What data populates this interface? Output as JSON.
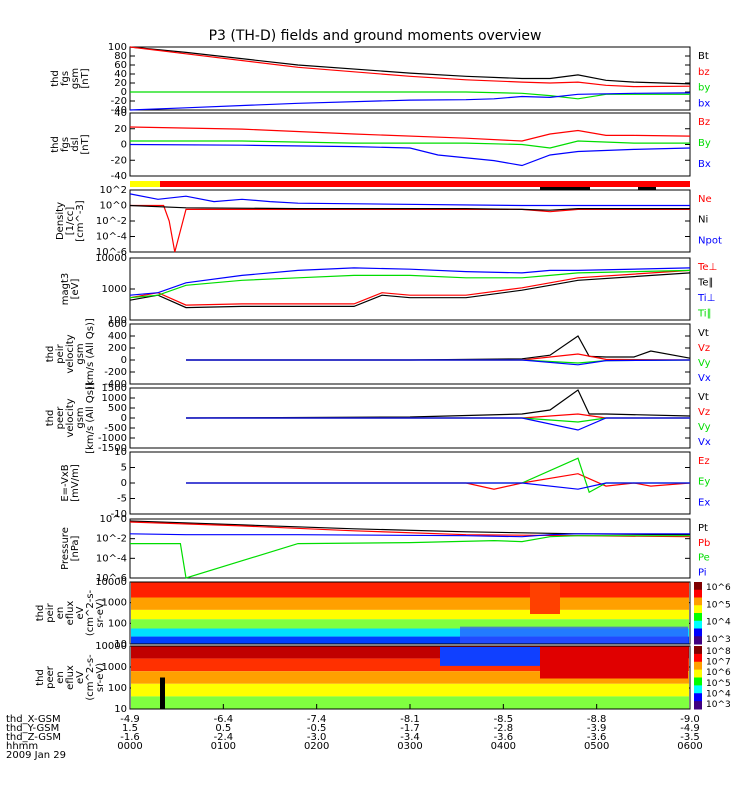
{
  "title": "P3 (TH-D) fields and ground moments overview",
  "colors": {
    "black": "#000000",
    "red": "#ff0000",
    "green": "#00dd00",
    "blue": "#0000ff"
  },
  "chart_data": [
    {
      "id": "p1",
      "type": "line",
      "ylabel": [
        "thd",
        "fgs",
        "gsm",
        "[nT]"
      ],
      "ylim": [
        -40,
        100
      ],
      "yticks": [
        "100",
        "80",
        "60",
        "40",
        "20",
        "0",
        "-20",
        "-40"
      ],
      "legend": [
        "Bt",
        "bz",
        "by",
        "bx"
      ],
      "series": [
        {
          "name": "Bt",
          "color": "black",
          "x": [
            0,
            0.1,
            0.3,
            0.5,
            0.6,
            0.7,
            0.75,
            0.8,
            0.85,
            0.9,
            1
          ],
          "y": [
            100,
            88,
            60,
            42,
            35,
            30,
            30,
            38,
            26,
            22,
            18
          ]
        },
        {
          "name": "bz",
          "color": "red",
          "x": [
            0,
            0.1,
            0.3,
            0.5,
            0.6,
            0.7,
            0.75,
            0.8,
            0.85,
            0.9,
            1
          ],
          "y": [
            100,
            85,
            55,
            35,
            27,
            22,
            20,
            22,
            15,
            12,
            13
          ]
        },
        {
          "name": "by",
          "color": "green",
          "x": [
            0,
            0.3,
            0.6,
            0.7,
            0.75,
            0.8,
            0.85,
            0.9,
            1
          ],
          "y": [
            0,
            0,
            0,
            -3,
            -8,
            -15,
            -5,
            -5,
            -5
          ]
        },
        {
          "name": "bx",
          "color": "blue",
          "x": [
            0,
            0.1,
            0.3,
            0.5,
            0.6,
            0.65,
            0.7,
            0.75,
            0.8,
            0.9,
            1
          ],
          "y": [
            -40,
            -35,
            -25,
            -18,
            -17,
            -15,
            -10,
            -12,
            -5,
            -3,
            -2
          ]
        }
      ]
    },
    {
      "id": "p2",
      "type": "line",
      "ylabel": [
        "thd",
        "fgs",
        "dsl",
        "[nT]"
      ],
      "ylim": [
        -50,
        40
      ],
      "yticks": [
        "40",
        "20",
        "0",
        "-20",
        "-40"
      ],
      "legend": [
        "Bz",
        "By",
        "Bx"
      ],
      "series": [
        {
          "name": "Bz",
          "color": "red",
          "x": [
            0,
            0.2,
            0.4,
            0.6,
            0.7,
            0.75,
            0.8,
            0.85,
            0.9,
            1
          ],
          "y": [
            20,
            17,
            10,
            4,
            0,
            10,
            15,
            8,
            8,
            7
          ]
        },
        {
          "name": "By",
          "color": "green",
          "x": [
            0,
            0.2,
            0.4,
            0.6,
            0.7,
            0.75,
            0.8,
            0.9,
            1
          ],
          "y": [
            0,
            0,
            -3,
            -3,
            -5,
            -10,
            0,
            -3,
            -3
          ]
        },
        {
          "name": "Bx",
          "color": "blue",
          "x": [
            0,
            0.2,
            0.4,
            0.5,
            0.55,
            0.65,
            0.7,
            0.75,
            0.8,
            0.9,
            1
          ],
          "y": [
            -5,
            -6,
            -8,
            -10,
            -20,
            -28,
            -35,
            -20,
            -15,
            -12,
            -10
          ]
        }
      ]
    },
    {
      "id": "p3",
      "type": "line",
      "ylabel": [
        "Density",
        "[1/cc]",
        "[cm^-3]"
      ],
      "ylim": [
        -6,
        2
      ],
      "yticks": [
        "10^2",
        "10^0",
        "10^-2",
        "10^-4",
        "10^-6"
      ],
      "legend": [
        "Ne",
        "Ni",
        "Npot"
      ],
      "series": [
        {
          "name": "Ne",
          "color": "red",
          "x": [
            0,
            0.06,
            0.07,
            0.08,
            0.1,
            0.3,
            0.6,
            0.7,
            0.75,
            0.8,
            1
          ],
          "y": [
            0,
            0,
            -2,
            -6,
            -0.5,
            -0.5,
            -0.5,
            -0.5,
            -0.8,
            -0.5,
            -0.5
          ]
        },
        {
          "name": "Ni",
          "color": "black",
          "x": [
            0,
            0.1,
            0.3,
            0.6,
            0.7,
            0.75,
            0.8,
            1
          ],
          "y": [
            0,
            -0.3,
            -0.4,
            -0.4,
            -0.5,
            -0.6,
            -0.4,
            -0.4
          ]
        },
        {
          "name": "Npot",
          "color": "blue",
          "x": [
            0,
            0.05,
            0.1,
            0.15,
            0.2,
            0.25,
            0.3,
            0.7,
            1
          ],
          "y": [
            1.5,
            0.8,
            1.2,
            0.5,
            0.8,
            0.5,
            0.3,
            0,
            0
          ]
        }
      ]
    },
    {
      "id": "p4",
      "type": "line",
      "ylabel": [
        "magt3",
        "[eV]"
      ],
      "ylim": [
        1.5,
        4
      ],
      "yticks": [
        "10000",
        "1000",
        "100"
      ],
      "legend": [
        "Te⊥",
        "Te∥",
        "Ti⊥",
        "Ti∥"
      ],
      "series": [
        {
          "name": "Te⊥",
          "color": "red",
          "x": [
            0,
            0.05,
            0.1,
            0.2,
            0.4,
            0.45,
            0.5,
            0.6,
            0.7,
            0.75,
            0.8,
            1
          ],
          "y": [
            2.4,
            2.6,
            2.1,
            2.15,
            2.15,
            2.6,
            2.5,
            2.5,
            2.8,
            3,
            3.2,
            3.5
          ]
        },
        {
          "name": "Te∥",
          "color": "black",
          "x": [
            0,
            0.05,
            0.1,
            0.2,
            0.4,
            0.45,
            0.5,
            0.6,
            0.7,
            0.75,
            0.8,
            1
          ],
          "y": [
            2.3,
            2.5,
            2,
            2.05,
            2.05,
            2.5,
            2.4,
            2.4,
            2.7,
            2.9,
            3.1,
            3.4
          ]
        },
        {
          "name": "Ti⊥",
          "color": "blue",
          "x": [
            0,
            0.05,
            0.1,
            0.2,
            0.3,
            0.4,
            0.5,
            0.6,
            0.7,
            0.75,
            0.8,
            1
          ],
          "y": [
            2.5,
            2.6,
            3,
            3.3,
            3.5,
            3.6,
            3.55,
            3.45,
            3.4,
            3.5,
            3.5,
            3.6
          ]
        },
        {
          "name": "Ti∥",
          "color": "green",
          "x": [
            0,
            0.05,
            0.1,
            0.2,
            0.3,
            0.4,
            0.5,
            0.6,
            0.7,
            0.75,
            0.8,
            1
          ],
          "y": [
            2.4,
            2.5,
            2.9,
            3.1,
            3.2,
            3.3,
            3.3,
            3.2,
            3.2,
            3.3,
            3.4,
            3.5
          ]
        }
      ]
    },
    {
      "id": "p5",
      "type": "line",
      "ylabel": [
        "thd",
        "peir",
        "velocity",
        "gsm",
        "[km/s (All Qs)]"
      ],
      "ylim": [
        -400,
        600
      ],
      "yticks": [
        "600",
        "400",
        "200",
        "0",
        "-200",
        "-400"
      ],
      "legend": [
        "Vt",
        "Vz",
        "Vy",
        "Vx"
      ],
      "series": [
        {
          "name": "Vt",
          "color": "black",
          "x": [
            0.1,
            0.5,
            0.7,
            0.75,
            0.8,
            0.82,
            0.85,
            0.9,
            0.93,
            1
          ],
          "y": [
            0,
            0,
            20,
            80,
            400,
            60,
            50,
            50,
            150,
            30
          ]
        },
        {
          "name": "Vz",
          "color": "red",
          "x": [
            0.1,
            0.7,
            0.8,
            0.85,
            1
          ],
          "y": [
            0,
            0,
            100,
            10,
            0
          ]
        },
        {
          "name": "Vy",
          "color": "green",
          "x": [
            0.1,
            0.7,
            0.8,
            0.85,
            1
          ],
          "y": [
            0,
            0,
            -50,
            -10,
            0
          ]
        },
        {
          "name": "Vx",
          "color": "blue",
          "x": [
            0.1,
            0.7,
            0.8,
            0.85,
            1
          ],
          "y": [
            0,
            0,
            -80,
            -10,
            0
          ]
        }
      ]
    },
    {
      "id": "p6",
      "type": "line",
      "ylabel": [
        "thd",
        "peer",
        "velocity",
        "gsm",
        "[km/s (All Qs)]"
      ],
      "ylim": [
        -1500,
        1500
      ],
      "yticks": [
        "1500",
        "1000",
        "500",
        "0",
        "-500",
        "-1000",
        "-1500"
      ],
      "legend": [
        "Vt",
        "Vz",
        "Vy",
        "Vx"
      ],
      "series": [
        {
          "name": "Vt",
          "color": "black",
          "x": [
            0.1,
            0.5,
            0.7,
            0.75,
            0.8,
            0.82,
            0.85,
            1
          ],
          "y": [
            0,
            50,
            200,
            400,
            1400,
            200,
            200,
            100
          ]
        },
        {
          "name": "Vz",
          "color": "red",
          "x": [
            0.1,
            0.7,
            0.8,
            0.85,
            1
          ],
          "y": [
            0,
            0,
            200,
            0,
            0
          ]
        },
        {
          "name": "Vy",
          "color": "green",
          "x": [
            0.1,
            0.7,
            0.8,
            0.85,
            1
          ],
          "y": [
            0,
            0,
            -200,
            0,
            0
          ]
        },
        {
          "name": "Vx",
          "color": "blue",
          "x": [
            0.1,
            0.7,
            0.8,
            0.85,
            1
          ],
          "y": [
            0,
            0,
            -600,
            0,
            0
          ]
        }
      ]
    },
    {
      "id": "p7",
      "type": "line",
      "ylabel": [
        "E=-VxB",
        "[mV/m]"
      ],
      "ylim": [
        -10,
        10
      ],
      "yticks": [
        "10",
        "5",
        "0",
        "-5",
        "-10"
      ],
      "legend": [
        "Ez",
        "Ey",
        "Ex"
      ],
      "series": [
        {
          "name": "Ez",
          "color": "red",
          "x": [
            0.1,
            0.5,
            0.6,
            0.65,
            0.7,
            0.8,
            0.85,
            0.9,
            0.93,
            1
          ],
          "y": [
            0,
            0,
            0,
            -2,
            0,
            3,
            -1,
            0,
            -1,
            0
          ]
        },
        {
          "name": "Ey",
          "color": "green",
          "x": [
            0.1,
            0.5,
            0.7,
            0.8,
            0.82,
            0.85,
            1
          ],
          "y": [
            0,
            0,
            0,
            8,
            -3,
            0,
            0
          ]
        },
        {
          "name": "Ex",
          "color": "blue",
          "x": [
            0.1,
            0.5,
            0.7,
            0.8,
            0.85,
            1
          ],
          "y": [
            0,
            0,
            0,
            -2,
            0,
            0
          ]
        }
      ]
    },
    {
      "id": "p8",
      "type": "line",
      "ylabel": [
        "Pressure",
        "[nPa]"
      ],
      "ylim": [
        -6,
        0
      ],
      "yticks": [
        "10^0",
        "10^-2",
        "10^-4",
        "10^-6"
      ],
      "legend": [
        "Pt",
        "Pb",
        "Pe",
        "Pi"
      ],
      "series": [
        {
          "name": "Pt",
          "color": "black",
          "x": [
            0,
            0.2,
            0.4,
            0.6,
            0.8,
            1
          ],
          "y": [
            -0.2,
            -0.6,
            -1,
            -1.3,
            -1.5,
            -1.6
          ]
        },
        {
          "name": "Pb",
          "color": "red",
          "x": [
            0,
            0.2,
            0.4,
            0.6,
            0.8,
            1
          ],
          "y": [
            -0.3,
            -0.7,
            -1.2,
            -1.6,
            -1.7,
            -1.8
          ]
        },
        {
          "name": "Pe",
          "color": "green",
          "x": [
            0,
            0.09,
            0.1,
            0.3,
            0.5,
            0.65,
            0.7,
            0.75,
            0.8,
            1
          ],
          "y": [
            -2.5,
            -2.5,
            -6,
            -2.5,
            -2.4,
            -2.2,
            -2.3,
            -1.8,
            -1.7,
            -1.7
          ]
        },
        {
          "name": "Pi",
          "color": "blue",
          "x": [
            0,
            0.1,
            0.3,
            0.6,
            0.7,
            0.75,
            0.8,
            1
          ],
          "y": [
            -1.5,
            -1.6,
            -1.6,
            -1.7,
            -1.8,
            -1.6,
            -1.5,
            -1.5
          ]
        }
      ]
    },
    {
      "id": "p9",
      "type": "heatmap",
      "ylabel": [
        "thd",
        "peir",
        "en",
        "eflux",
        "eV",
        "(cm^2-s-",
        "sr-eV)"
      ],
      "yticks": [
        "10000",
        "1000",
        "100",
        "10"
      ],
      "colorbar_ticks": [
        "10^6",
        "10^5",
        "10^4",
        "10^3"
      ]
    },
    {
      "id": "p10",
      "type": "heatmap",
      "ylabel": [
        "thd",
        "peer",
        "en",
        "eflux",
        "eV",
        "(cm^2-s-",
        "sr-eV)"
      ],
      "yticks": [
        "10000",
        "1000",
        "100",
        "10"
      ],
      "colorbar_ticks": [
        "10^8",
        "10^7",
        "10^6",
        "10^5",
        "10^4",
        "10^3"
      ]
    }
  ],
  "xaxis": {
    "rows": [
      {
        "label": "thd_X-GSM",
        "values": [
          "-4.9",
          "-6.4",
          "-7.4",
          "-8.1",
          "-8.5",
          "-8.8",
          "-9.0"
        ]
      },
      {
        "label": "thd_Y-GSM",
        "values": [
          "1.5",
          "0.5",
          "-0.5",
          "-1.7",
          "-2.8",
          "-3.9",
          "-4.9"
        ]
      },
      {
        "label": "thd_Z-GSM",
        "values": [
          "-1.6",
          "-2.4",
          "-3.0",
          "-3.4",
          "-3.6",
          "-3.6",
          "-3.5"
        ]
      },
      {
        "label": "hhmm",
        "values": [
          "0000",
          "0100",
          "0200",
          "0300",
          "0400",
          "0500",
          "0600"
        ]
      }
    ],
    "date": "2009 Jan 29"
  }
}
